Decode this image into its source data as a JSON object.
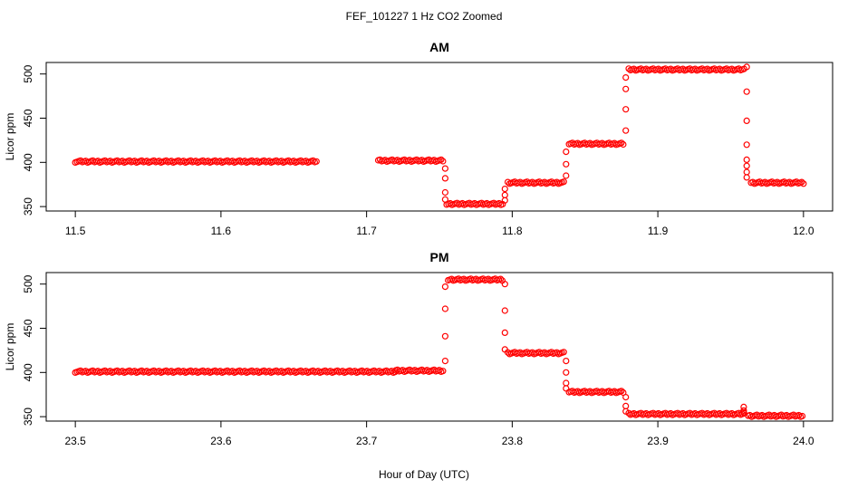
{
  "figure": {
    "suptitle": "FEF_101227  1 Hz CO2 Zoomed",
    "xlabel": "Hour of Day (UTC)"
  },
  "chart_data": [
    {
      "type": "scatter",
      "title": "AM",
      "xlabel": "",
      "ylabel": "Licor ppm",
      "xlim": [
        11.48,
        12.02
      ],
      "ylim": [
        345,
        513
      ],
      "xticks": [
        11.5,
        11.6,
        11.7,
        11.8,
        11.9,
        12.0
      ],
      "xtick_labels": [
        "11.5",
        "11.6",
        "11.7",
        "11.8",
        "11.9",
        "12.0"
      ],
      "yticks": [
        350,
        400,
        450,
        500
      ],
      "ytick_labels": [
        "350",
        "400",
        "450",
        "500"
      ],
      "marker_color": "#ff0000",
      "grid": false,
      "segments": [
        {
          "x_start": 11.5,
          "x_end": 11.666,
          "y": 401
        },
        {
          "x_start": 11.708,
          "x_end": 11.753,
          "y": 402
        },
        {
          "x_start": 11.755,
          "x_end": 11.794,
          "y": 353
        },
        {
          "x_start": 11.797,
          "x_end": 11.836,
          "y": 377
        },
        {
          "x_start": 11.839,
          "x_end": 11.877,
          "y": 421
        },
        {
          "x_start": 11.88,
          "x_end": 11.96,
          "y": 505
        },
        {
          "x_start": 11.964,
          "x_end": 12.0,
          "y": 377
        }
      ],
      "transitions": [
        {
          "x": 11.754,
          "y": [
            393,
            382,
            366,
            358
          ]
        },
        {
          "x": 11.795,
          "y": [
            357,
            363,
            370
          ]
        },
        {
          "x": 11.837,
          "y": [
            385,
            398,
            412
          ]
        },
        {
          "x": 11.878,
          "y": [
            436,
            460,
            483,
            496
          ]
        },
        {
          "x": 11.961,
          "y": [
            508,
            480,
            447,
            420,
            403,
            396,
            389,
            383
          ]
        }
      ]
    },
    {
      "type": "scatter",
      "title": "PM",
      "xlabel": "",
      "ylabel": "Licor ppm",
      "xlim": [
        23.48,
        24.02
      ],
      "ylim": [
        345,
        513
      ],
      "xticks": [
        23.5,
        23.6,
        23.7,
        23.8,
        23.9,
        24.0
      ],
      "xtick_labels": [
        "23.5",
        "23.6",
        "23.7",
        "23.8",
        "23.9",
        "24.0"
      ],
      "yticks": [
        350,
        400,
        450,
        500
      ],
      "ytick_labels": [
        "350",
        "400",
        "450",
        "500"
      ],
      "marker_color": "#ff0000",
      "grid": false,
      "segments": [
        {
          "x_start": 23.5,
          "x_end": 23.72,
          "y": 401
        },
        {
          "x_start": 23.72,
          "x_end": 23.753,
          "y": 402
        },
        {
          "x_start": 23.756,
          "x_end": 23.794,
          "y": 505
        },
        {
          "x_start": 23.797,
          "x_end": 23.836,
          "y": 422
        },
        {
          "x_start": 23.839,
          "x_end": 23.877,
          "y": 378
        },
        {
          "x_start": 23.88,
          "x_end": 23.96,
          "y": 353
        },
        {
          "x_start": 23.962,
          "x_end": 24.0,
          "y": 351
        }
      ],
      "transitions": [
        {
          "x": 23.754,
          "y": [
            413,
            441,
            472,
            497
          ]
        },
        {
          "x": 23.795,
          "y": [
            500,
            470,
            445,
            426
          ]
        },
        {
          "x": 23.837,
          "y": [
            413,
            400,
            388,
            382
          ]
        },
        {
          "x": 23.878,
          "y": [
            372,
            362,
            356
          ]
        },
        {
          "x": 23.959,
          "y": [
            361,
            357,
            355
          ]
        }
      ]
    }
  ]
}
